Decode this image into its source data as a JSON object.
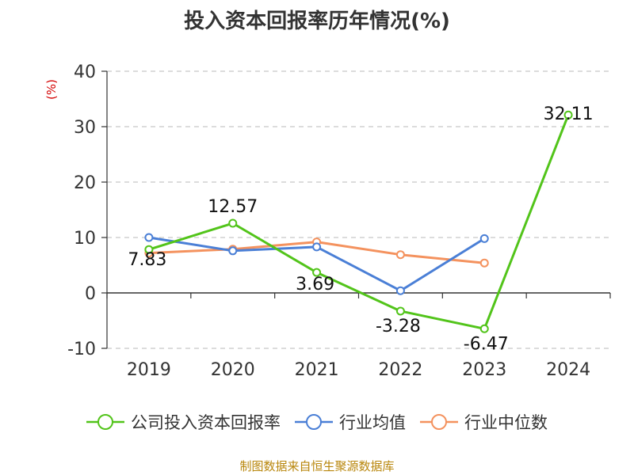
{
  "title": "投入资本回报率历年情况(%)",
  "source": "制图数据来自恒生聚源数据库",
  "chart_data": {
    "type": "line",
    "categories": [
      "2019",
      "2020",
      "2021",
      "2022",
      "2023",
      "2024"
    ],
    "ylim": [
      -10,
      40
    ],
    "yticks": [
      -10,
      0,
      10,
      20,
      30,
      40
    ],
    "ylabel": "(%)",
    "grid": true,
    "legend": "bottom",
    "series": [
      {
        "name": "公司投入资本回报率",
        "color": "#52c41a",
        "values": [
          7.83,
          12.57,
          3.69,
          -3.28,
          -6.47,
          32.11
        ],
        "labels": [
          "7.83",
          "12.57",
          "3.69",
          "-3.28",
          "-6.47",
          "32.11"
        ]
      },
      {
        "name": "行业均值",
        "color": "#4a7fd6",
        "values": [
          10.0,
          7.6,
          8.3,
          0.4,
          9.8,
          null
        ]
      },
      {
        "name": "行业中位数",
        "color": "#f4925e",
        "values": [
          7.2,
          7.9,
          9.2,
          6.9,
          5.4,
          null
        ]
      }
    ]
  }
}
